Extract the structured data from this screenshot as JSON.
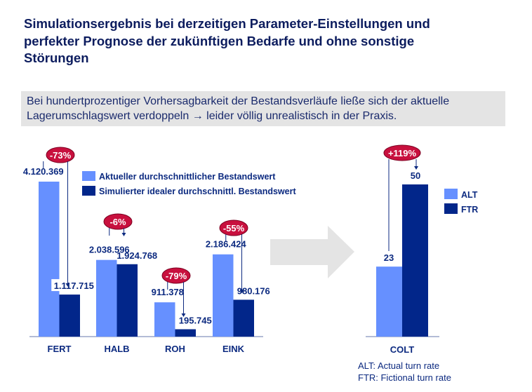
{
  "title": "Simulationsergebnis bei derzeitigen Parameter-Einstellungen und perfekter Prognose der zukünftigen Bedarfe und ohne sonstige Störungen",
  "note": "Bei hundertprozentiger Vorhersagbarkeit der Bestandsverläufe ließe sich der aktuelle Lagerumschlagswert verdoppeln → leider völlig unrealistisch in der Praxis.",
  "colors": {
    "light": "#6690ff",
    "dark": "#02268a",
    "badge": "#c8103e",
    "text": "#0c2a80",
    "arrow": "#e4e4e4"
  },
  "chart_data": [
    {
      "type": "bar",
      "categories": [
        "FERT",
        "HALB",
        "ROH",
        "EINK"
      ],
      "series": [
        {
          "name": "Aktueller durchschnittlicher Bestandswert",
          "values": [
            4120369,
            2038596,
            911378,
            2186424
          ],
          "labels": [
            "4.120.369",
            "2.038.596",
            "911.378",
            "2.186.424"
          ]
        },
        {
          "name": "Simulierter idealer durchschnittl. Bestandswert",
          "values": [
            1117715,
            1924768,
            195745,
            980176
          ],
          "labels": [
            "1.117.715",
            "1.924.768",
            "195.745",
            "980.176"
          ]
        }
      ],
      "changes": [
        "-73%",
        "-6%",
        "-79%",
        "-55%"
      ],
      "ylim": [
        0,
        4120369
      ],
      "legend": "top-right"
    },
    {
      "type": "bar",
      "categories": [
        "COLT"
      ],
      "series": [
        {
          "name": "ALT",
          "values": [
            23
          ],
          "labels": [
            "23"
          ]
        },
        {
          "name": "FTR",
          "values": [
            50
          ],
          "labels": [
            "50"
          ]
        }
      ],
      "changes": [
        "+119%"
      ],
      "ylim": [
        0,
        50
      ],
      "legend": "right",
      "footnotes": [
        "ALT: Actual turn rate",
        "FTR: Fictional turn rate"
      ]
    }
  ]
}
